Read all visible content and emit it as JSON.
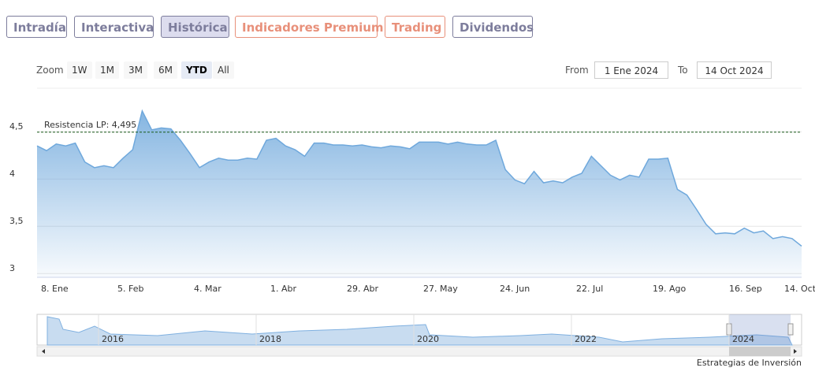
{
  "tabs": [
    {
      "label": "Intradía",
      "color": "#7d7d9c",
      "selected": false
    },
    {
      "label": "Interactiva",
      "color": "#7d7d9c",
      "selected": false
    },
    {
      "label": "Histórica",
      "color": "#7d7d9c",
      "selected": true
    },
    {
      "label": "Indicadores Premium",
      "color": "#e8907a",
      "selected": false
    },
    {
      "label": "Trading",
      "color": "#e8907a",
      "selected": false
    },
    {
      "label": "Dividendos",
      "color": "#7d7d9c",
      "selected": false
    }
  ],
  "zoom": {
    "label": "Zoom",
    "buttons": [
      "1W",
      "1M",
      "3M",
      "6M",
      "YTD",
      "All"
    ],
    "selected": 4
  },
  "range": {
    "from_label": "From",
    "from": "1 Ene 2024",
    "to_label": "To",
    "to": "14 Oct 2024"
  },
  "chart_data": {
    "type": "area",
    "color": "#6fa8dc",
    "categories": [
      "8. Ene",
      null,
      null,
      null,
      null,
      null,
      null,
      null,
      "5. Feb",
      null,
      null,
      null,
      null,
      null,
      null,
      null,
      "4. Mar",
      null,
      null,
      null,
      null,
      null,
      null,
      null,
      "1. Abr",
      null,
      null,
      null,
      null,
      null,
      null,
      null,
      "29. Abr",
      null,
      null,
      null,
      null,
      null,
      null,
      null,
      "27. May",
      null,
      null,
      null,
      null,
      null,
      null,
      null,
      "24. Jun",
      null,
      null,
      null,
      null,
      null,
      null,
      null,
      "22. Jul",
      null,
      null,
      null,
      null,
      null,
      null,
      null,
      "19. Ago",
      null,
      null,
      null,
      null,
      null,
      null,
      null,
      "16. Sep",
      null,
      null,
      null,
      null,
      null,
      null,
      null,
      "14. Oct"
    ],
    "values": [
      4.35,
      4.3,
      4.37,
      4.35,
      4.38,
      4.18,
      4.12,
      4.14,
      4.12,
      4.22,
      4.31,
      4.72,
      4.52,
      4.54,
      4.53,
      4.41,
      4.27,
      4.12,
      4.18,
      4.22,
      4.2,
      4.2,
      4.22,
      4.21,
      4.41,
      4.43,
      4.35,
      4.31,
      4.24,
      4.38,
      4.38,
      4.36,
      4.36,
      4.35,
      4.36,
      4.34,
      4.33,
      4.35,
      4.34,
      4.32,
      4.39,
      4.39,
      4.39,
      4.37,
      4.39,
      4.37,
      4.36,
      4.36,
      4.41,
      4.1,
      3.99,
      3.95,
      4.08,
      3.96,
      3.98,
      3.96,
      4.02,
      4.06,
      4.24,
      4.14,
      4.04,
      3.99,
      4.04,
      4.02,
      4.21,
      4.21,
      4.22,
      3.89,
      3.83,
      3.68,
      3.52,
      3.42,
      3.43,
      3.42,
      3.48,
      3.43,
      3.45,
      3.37,
      3.39,
      3.37,
      3.29
    ],
    "ylim": [
      2.96,
      4.96
    ],
    "yticks": [
      3,
      {
        "value": 3.5,
        "label": "3,5"
      },
      4,
      {
        "value": 4.5,
        "label": "4,5"
      }
    ],
    "grid": true,
    "annotation": {
      "label": "Resistencia LP: 4,495",
      "value": 4.495
    }
  },
  "navigator": {
    "labels": [
      "2016",
      "2018",
      "2020",
      "2022",
      "2024"
    ]
  },
  "footer": "Estrategias de Inversión"
}
